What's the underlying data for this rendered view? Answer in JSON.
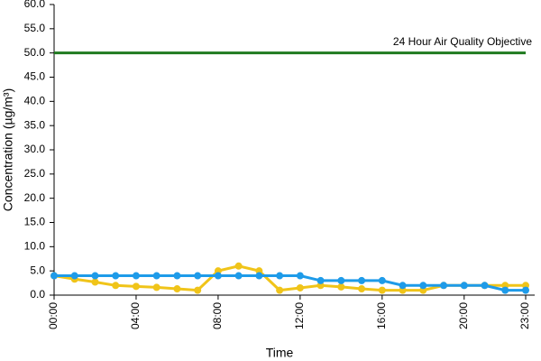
{
  "chart_data": {
    "type": "line",
    "x_label": "Time",
    "y_label": "Concentration (µg/m³)",
    "categories": [
      "00:00",
      null,
      null,
      null,
      "04:00",
      null,
      null,
      null,
      "08:00",
      null,
      null,
      null,
      "12:00",
      null,
      null,
      null,
      "16:00",
      null,
      null,
      null,
      "20:00",
      null,
      null,
      "23:00"
    ],
    "series": [
      {
        "color": "#f0c419",
        "values": [
          4,
          3.3,
          2.7,
          2,
          1.8,
          1.6,
          1.3,
          1,
          5,
          6,
          5,
          1,
          1.5,
          2,
          1.7,
          1.3,
          1,
          1,
          1,
          2,
          2,
          2,
          2,
          2
        ]
      },
      {
        "color": "#1e9be9",
        "values": [
          4,
          4,
          4,
          4,
          4,
          4,
          4,
          4,
          4,
          4,
          4,
          4,
          4,
          3,
          3,
          3,
          3,
          2,
          2,
          2,
          2,
          2,
          1,
          1
        ]
      }
    ],
    "objective": {
      "value": 50,
      "label": "24 Hour Air Quality Objective",
      "color": "#1f7a1f"
    },
    "ylim": [
      0,
      60
    ],
    "yticks": [
      {
        "value": 0,
        "label": "0.0"
      },
      {
        "value": 5,
        "label": "5.0"
      },
      {
        "value": 10,
        "label": "10.0"
      },
      {
        "value": 15,
        "label": "15.0"
      },
      {
        "value": 20,
        "label": "20.0"
      },
      {
        "value": 25,
        "label": "25.0"
      },
      {
        "value": 30,
        "label": "30.0"
      },
      {
        "value": 35,
        "label": "35.0"
      },
      {
        "value": 40,
        "label": "40.0"
      },
      {
        "value": 45,
        "label": "45.0"
      },
      {
        "value": 50,
        "label": "50.0"
      },
      {
        "value": 55,
        "label": "55.0"
      },
      {
        "value": 60,
        "label": "60.0"
      }
    ],
    "grid": false
  }
}
